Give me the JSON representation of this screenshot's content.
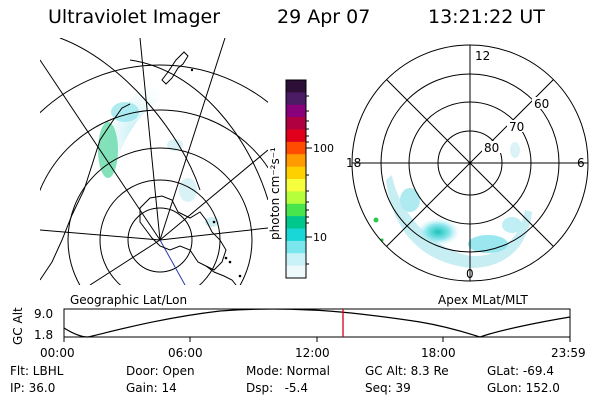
{
  "header": {
    "title": "Ultraviolet Imager",
    "date": "29 Apr 07",
    "time": "13:21:22 UT"
  },
  "colorbar": {
    "unit_label": "photon cm⁻²s⁻¹",
    "ticks": [
      "100",
      "10"
    ],
    "colors": [
      "#2c0e36",
      "#4b1c63",
      "#8a007a",
      "#b0003f",
      "#e0001b",
      "#ff4c00",
      "#ff9b00",
      "#ffd000",
      "#f6ff3d",
      "#b6ff3b",
      "#48e64c",
      "#00c88c",
      "#19d7d7",
      "#7be6ee",
      "#c8f2f7",
      "#eef9fb"
    ]
  },
  "right_map": {
    "lat_labels": [
      "80",
      "70",
      "60"
    ],
    "mlt_labels": [
      "12",
      "18",
      "6",
      "0"
    ]
  },
  "strip": {
    "left_caption": "Geographic Lat/Lon",
    "right_caption": "Apex MLat/MLT",
    "ylabel": "GC Alt",
    "y_ticks": [
      "9.0",
      "1.8"
    ],
    "x_ticks": [
      "00:00",
      "06:00",
      "12:00",
      "18:00",
      "23:59"
    ],
    "marker_color": "#d0021b"
  },
  "footer": {
    "row1": {
      "filter": "Flt: LBHL",
      "door": "Door: Open",
      "mode": "Mode: Normal",
      "gcalt": "GC Alt: 8.3 Re",
      "glat": "GLat: -69.4"
    },
    "row2": {
      "ip": "IP: 36.0",
      "gain": "Gain: 14",
      "dsp": "Dsp:   -5.4",
      "seq": "Seq: 39",
      "glon": "GLon: 152.0"
    }
  }
}
